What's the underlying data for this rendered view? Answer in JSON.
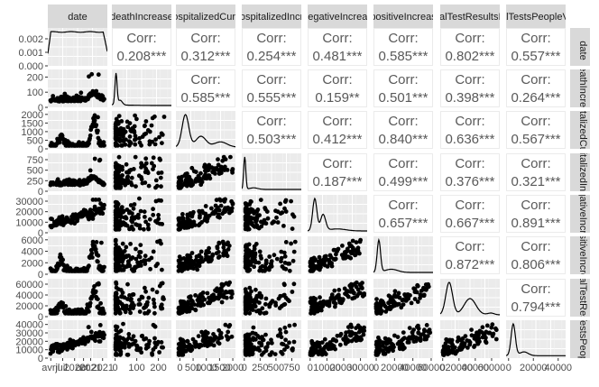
{
  "chart_data": {
    "type": "scatter",
    "title": "",
    "variables": [
      "date",
      "deathIncrease",
      "hospitalizedCurrently",
      "hospitalizedIncrease",
      "negativeIncrease",
      "positiveIncrease",
      "totalTestResultsIncrease",
      "totalTestsPeopleViral"
    ],
    "panel_labels": {
      "top": [
        "date",
        "deathIncrease",
        "hospitalizedCurre",
        "hospitalizedIncre",
        "negativeIncreas",
        "positiveIncreas",
        "totalTestResultsInc",
        "totalTestsPeopleViral"
      ],
      "right": [
        "date",
        "deathIncrease",
        "hospitalizedCurrently",
        "hospitalizedIncrease",
        "negativeIncrease",
        "positiveIncrease",
        "totalTestResults",
        "totalTestsPeopleViral"
      ]
    },
    "correlations": [
      {
        "row": 0,
        "col": 1,
        "label": "Corr:",
        "value": "0.208***"
      },
      {
        "row": 0,
        "col": 2,
        "label": "Corr:",
        "value": "0.312***"
      },
      {
        "row": 0,
        "col": 3,
        "label": "Corr:",
        "value": "0.254***"
      },
      {
        "row": 0,
        "col": 4,
        "label": "Corr:",
        "value": "0.481***"
      },
      {
        "row": 0,
        "col": 5,
        "label": "Corr:",
        "value": "0.585***"
      },
      {
        "row": 0,
        "col": 6,
        "label": "Corr:",
        "value": "0.802***"
      },
      {
        "row": 0,
        "col": 7,
        "label": "Corr:",
        "value": "0.557***"
      },
      {
        "row": 1,
        "col": 2,
        "label": "Corr:",
        "value": "0.585***"
      },
      {
        "row": 1,
        "col": 3,
        "label": "Corr:",
        "value": "0.555***"
      },
      {
        "row": 1,
        "col": 4,
        "label": "Corr:",
        "value": "0.159**"
      },
      {
        "row": 1,
        "col": 5,
        "label": "Corr:",
        "value": "0.501***"
      },
      {
        "row": 1,
        "col": 6,
        "label": "Corr:",
        "value": "0.398***"
      },
      {
        "row": 1,
        "col": 7,
        "label": "Corr:",
        "value": "0.264***"
      },
      {
        "row": 2,
        "col": 3,
        "label": "Corr:",
        "value": "0.503***"
      },
      {
        "row": 2,
        "col": 4,
        "label": "Corr:",
        "value": "0.412***"
      },
      {
        "row": 2,
        "col": 5,
        "label": "Corr:",
        "value": "0.840***"
      },
      {
        "row": 2,
        "col": 6,
        "label": "Corr:",
        "value": "0.636***"
      },
      {
        "row": 2,
        "col": 7,
        "label": "Corr:",
        "value": "0.567***"
      },
      {
        "row": 3,
        "col": 4,
        "label": "Corr:",
        "value": "0.187***"
      },
      {
        "row": 3,
        "col": 5,
        "label": "Corr:",
        "value": "0.499***"
      },
      {
        "row": 3,
        "col": 6,
        "label": "Corr:",
        "value": "0.376***"
      },
      {
        "row": 3,
        "col": 7,
        "label": "Corr:",
        "value": "0.321***"
      },
      {
        "row": 4,
        "col": 5,
        "label": "Corr:",
        "value": "0.657***"
      },
      {
        "row": 4,
        "col": 6,
        "label": "Corr:",
        "value": "0.667***"
      },
      {
        "row": 4,
        "col": 7,
        "label": "Corr:",
        "value": "0.891***"
      },
      {
        "row": 5,
        "col": 6,
        "label": "Corr:",
        "value": "0.872***"
      },
      {
        "row": 5,
        "col": 7,
        "label": "Corr:",
        "value": "0.806***"
      },
      {
        "row": 6,
        "col": 7,
        "label": "Corr:",
        "value": "0.794***"
      }
    ],
    "y_axis_ticks": [
      {
        "row": 0,
        "labels": [
          "0.002",
          "0.001",
          "0.000"
        ],
        "values": [
          0.002,
          0.001,
          0.0
        ],
        "ylim": [
          0,
          0.0028
        ]
      },
      {
        "row": 1,
        "labels": [
          "200",
          "100",
          "0"
        ],
        "values": [
          200,
          100,
          0
        ],
        "ylim": [
          0,
          250
        ]
      },
      {
        "row": 2,
        "labels": [
          "2000",
          "1500",
          "1000",
          "500",
          "0"
        ],
        "values": [
          2000,
          1500,
          1000,
          500,
          0
        ],
        "ylim": [
          0,
          2200
        ]
      },
      {
        "row": 3,
        "labels": [
          "750",
          "500",
          "250",
          "0"
        ],
        "values": [
          750,
          500,
          250,
          0
        ],
        "ylim": [
          0,
          900
        ]
      },
      {
        "row": 4,
        "labels": [
          "30000",
          "20000",
          "10000",
          "0"
        ],
        "values": [
          30000,
          20000,
          10000,
          0
        ],
        "ylim": [
          0,
          36000
        ]
      },
      {
        "row": 5,
        "labels": [
          "6000",
          "4000",
          "2000",
          "0"
        ],
        "values": [
          6000,
          4000,
          2000,
          0
        ],
        "ylim": [
          0,
          6600
        ]
      },
      {
        "row": 6,
        "labels": [
          "60000",
          "40000",
          "20000",
          "0"
        ],
        "values": [
          60000,
          40000,
          20000,
          0
        ],
        "ylim": [
          0,
          70000
        ]
      },
      {
        "row": 7,
        "labels": [
          "40000",
          "30000",
          "20000",
          "10000",
          "0"
        ],
        "values": [
          40000,
          30000,
          20000,
          10000,
          0
        ],
        "ylim": [
          0,
          45000
        ]
      }
    ],
    "x_axis_ticks": [
      {
        "col": 0,
        "labels": [
          "avril",
          "juil.",
          "2020",
          "oct.",
          "2021",
          "2021"
        ],
        "positions": [
          0.05,
          0.25,
          0.45,
          0.6,
          0.72,
          0.92
        ]
      },
      {
        "col": 1,
        "labels": [
          "0",
          "100",
          "200"
        ],
        "values": [
          0,
          100,
          200
        ],
        "xlim": [
          -15,
          260
        ]
      },
      {
        "col": 2,
        "labels": [
          "0",
          "500",
          "1000",
          "1500",
          "2000"
        ],
        "values": [
          0,
          500,
          1000,
          1500,
          2000
        ],
        "xlim": [
          -150,
          2100
        ]
      },
      {
        "col": 3,
        "labels": [
          "0",
          "250",
          "500",
          "750"
        ],
        "values": [
          0,
          250,
          500,
          750
        ],
        "xlim": [
          -40,
          900
        ]
      },
      {
        "col": 4,
        "labels": [
          "0",
          "10000",
          "20000",
          "30000"
        ],
        "values": [
          0,
          10000,
          20000,
          30000
        ],
        "xlim": [
          -1500,
          34000
        ]
      },
      {
        "col": 5,
        "labels": [
          "0",
          "20000",
          "40000",
          "60000"
        ],
        "values": [
          0,
          20000,
          40000,
          60000
        ],
        "xlim": [
          -3000,
          62000
        ]
      },
      {
        "col": 6,
        "labels": [
          "0",
          "20000",
          "40000",
          "60000"
        ],
        "values": [
          0,
          20000,
          40000,
          60000
        ],
        "xlim": [
          -3000,
          70000
        ]
      },
      {
        "col": 7,
        "labels": [
          "0",
          "20000",
          "40000"
        ],
        "values": [
          0,
          20000,
          40000
        ],
        "xlim": [
          -2000,
          46000
        ]
      }
    ],
    "panel_background": "#ebebeb",
    "strip_background": "#d9d9d9",
    "point_color": "#000000",
    "grid": true
  }
}
